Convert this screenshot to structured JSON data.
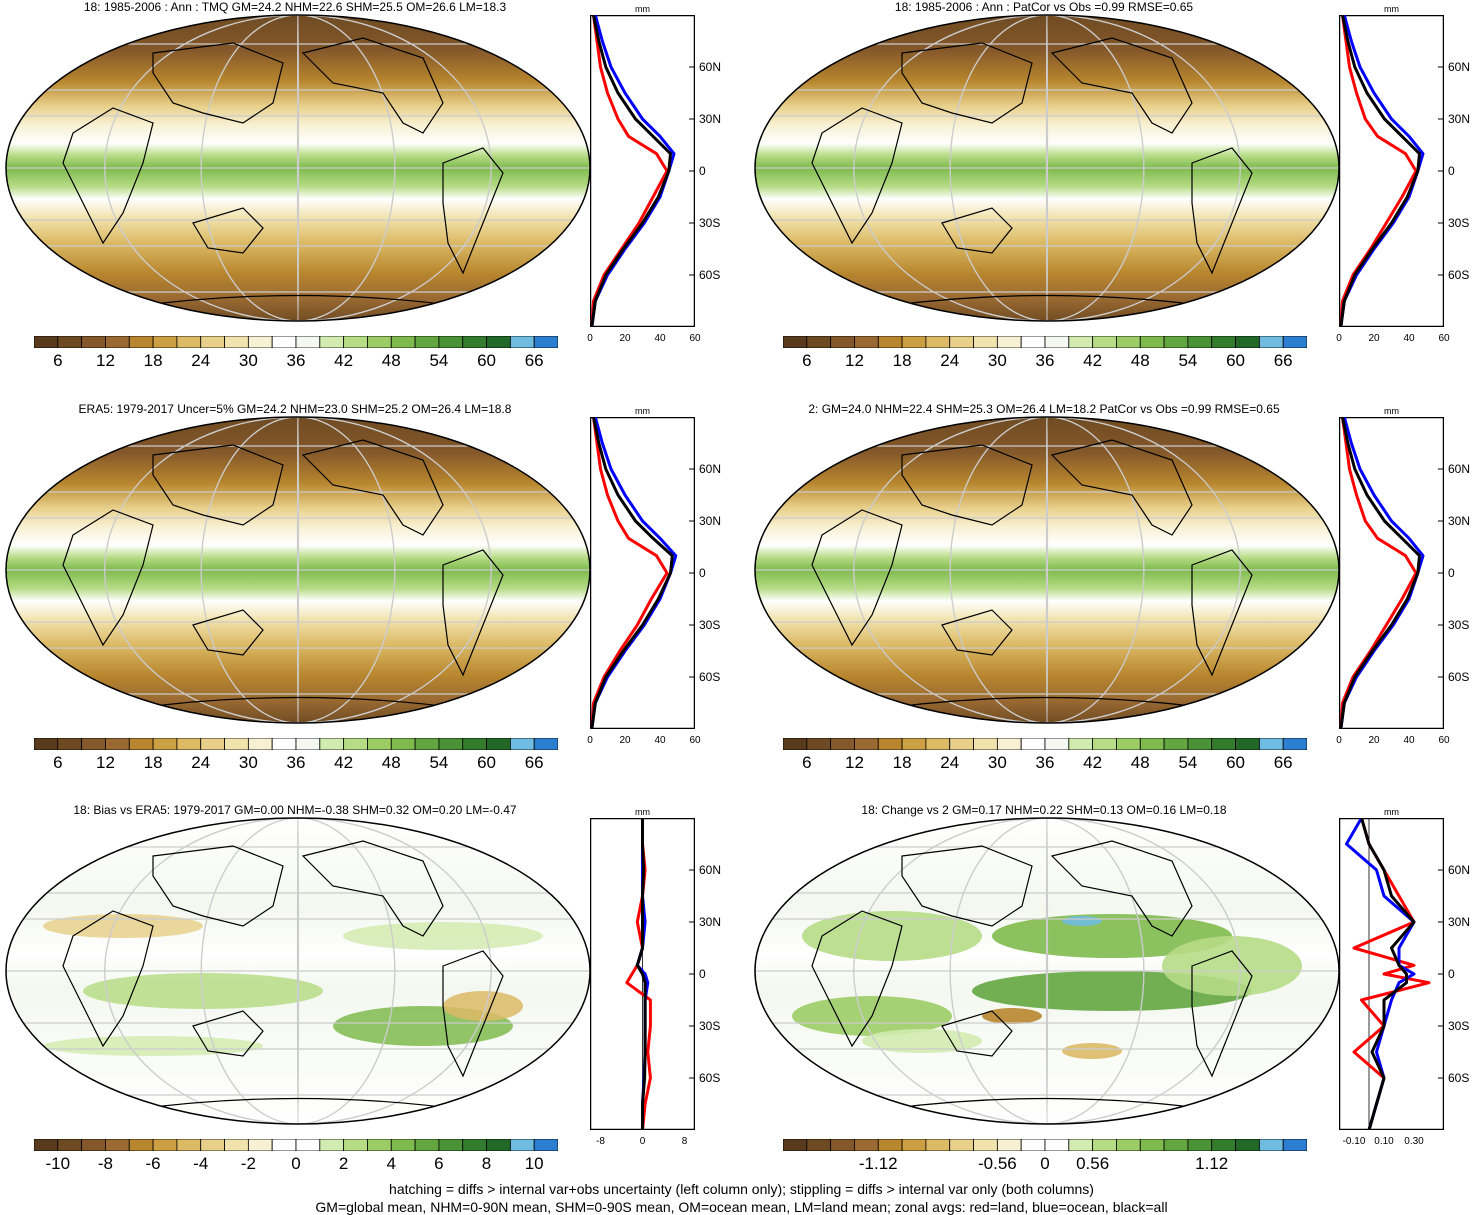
{
  "panels": [
    {
      "id": "p1",
      "title": "18: 1985-2006 : Ann : TMQ GM=24.2 NHM=22.6 SHM=25.5 OM=26.6 LM=18.3",
      "kind": "abs",
      "hatch": true,
      "stipple": true
    },
    {
      "id": "p2",
      "title": "18: 1985-2006 : Ann : PatCor vs Obs =0.99 RMSE=0.65",
      "kind": "abs",
      "hatch": false,
      "stipple": false
    },
    {
      "id": "p3",
      "title": "ERA5: 1979-2017 Uncer=5% GM=24.2 NHM=23.0 SHM=25.2 OM=26.4 LM=18.8",
      "kind": "abs",
      "hatch": true,
      "stipple": true
    },
    {
      "id": "p4",
      "title": "2: GM=24.0 NHM=22.4 SHM=25.3 OM=26.4 LM=18.2 PatCor vs Obs =0.99 RMSE=0.65",
      "kind": "abs",
      "hatch": false,
      "stipple": true
    },
    {
      "id": "p5",
      "title": "18: Bias vs ERA5: 1979-2017 GM=0.00 NHM=-0.38 SHM=0.32 OM=0.20 LM=-0.47",
      "kind": "bias",
      "hatch": true,
      "stipple": true
    },
    {
      "id": "p6",
      "title": "18: Change vs 2 GM=0.17 NHM=0.22 SHM=0.13 OM=0.16 LM=0.18",
      "kind": "change",
      "hatch": false,
      "stipple": false
    }
  ],
  "colorbars": {
    "abs": {
      "labels": [
        "6",
        "12",
        "18",
        "24",
        "30",
        "36",
        "42",
        "48",
        "54",
        "60",
        "66"
      ],
      "colors": [
        "#5a3a1c",
        "#6e4a22",
        "#84582a",
        "#9a6a32",
        "#b8862e",
        "#cc9f45",
        "#dcba66",
        "#e8d08b",
        "#f1e3ae",
        "#f8f0d2",
        "#ffffff",
        "#f4f8f0",
        "#d2ebb0",
        "#b6dc86",
        "#9ccc66",
        "#7fba4e",
        "#63a640",
        "#4a9236",
        "#347c2d",
        "#226827",
        "#6fbce0",
        "#2c7fd0"
      ]
    },
    "bias": {
      "labels": [
        "-10",
        "-8",
        "-6",
        "-4",
        "-2",
        "0",
        "2",
        "4",
        "6",
        "8",
        "10"
      ],
      "colors": [
        "#5a3a1c",
        "#6e4a22",
        "#84582a",
        "#9a6a32",
        "#b8862e",
        "#cc9f45",
        "#dcba66",
        "#e8d08b",
        "#f1e3ae",
        "#f8f0d2",
        "#ffffff",
        "#ffffff",
        "#d2ebb0",
        "#b6dc86",
        "#9ccc66",
        "#7fba4e",
        "#63a640",
        "#4a9236",
        "#347c2d",
        "#226827",
        "#6fbce0",
        "#2c7fd0"
      ]
    },
    "change": {
      "labels": [
        "-1.12",
        "-0.56",
        "0",
        "0.56",
        "1.12"
      ],
      "colors": [
        "#5a3a1c",
        "#6e4a22",
        "#84582a",
        "#9a6a32",
        "#b8862e",
        "#cc9f45",
        "#dcba66",
        "#e8d08b",
        "#f1e3ae",
        "#f8f0d2",
        "#ffffff",
        "#ffffff",
        "#d2ebb0",
        "#b6dc86",
        "#9ccc66",
        "#7fba4e",
        "#63a640",
        "#4a9236",
        "#347c2d",
        "#226827",
        "#6fbce0",
        "#2c7fd0"
      ]
    }
  },
  "zonal": {
    "unit": "mm",
    "lat_ticks": [
      "60N",
      "30N",
      "0",
      "30S",
      "60S"
    ],
    "lat_values": [
      60,
      30,
      0,
      -30,
      -60
    ],
    "abs_xticks": [
      "0",
      "20",
      "40",
      "60"
    ],
    "abs_xvalues": [
      0,
      20,
      40,
      60
    ],
    "bias_xticks": [
      "-8",
      "0",
      "8"
    ],
    "bias_xvalues": [
      -8,
      0,
      8
    ],
    "change_xticks": [
      "-0.10",
      "0.10",
      "0.30"
    ],
    "change_xvalues": [
      -0.1,
      0.1,
      0.3
    ]
  },
  "chart_data": [
    {
      "type": "line",
      "panel": "p1",
      "ylabel": "",
      "xlabel": "mm",
      "xlim": [
        0,
        60
      ],
      "ylim": [
        -90,
        90
      ],
      "x_lat": [
        -90,
        -75,
        -60,
        -45,
        -30,
        -15,
        0,
        10,
        20,
        30,
        45,
        60,
        75,
        90
      ],
      "series": [
        {
          "name": "red=land",
          "color": "#ff0000",
          "values": [
            1,
            2,
            8,
            18,
            28,
            36,
            44,
            38,
            22,
            16,
            10,
            6,
            4,
            2
          ]
        },
        {
          "name": "blue=ocean",
          "color": "#0000ff",
          "values": [
            1,
            3,
            10,
            20,
            31,
            40,
            45,
            48,
            40,
            30,
            20,
            12,
            7,
            3
          ]
        },
        {
          "name": "black=all",
          "color": "#000000",
          "values": [
            1,
            3,
            9,
            19,
            30,
            39,
            45,
            46,
            36,
            26,
            16,
            9,
            5,
            2
          ]
        }
      ]
    },
    {
      "type": "line",
      "panel": "p2",
      "ylabel": "",
      "xlabel": "mm",
      "xlim": [
        0,
        60
      ],
      "ylim": [
        -90,
        90
      ],
      "x_lat": [
        -90,
        -75,
        -60,
        -45,
        -30,
        -15,
        0,
        10,
        20,
        30,
        45,
        60,
        75,
        90
      ],
      "series": [
        {
          "name": "red=land",
          "color": "#ff0000",
          "values": [
            1,
            2,
            8,
            18,
            27,
            36,
            44,
            38,
            22,
            15,
            10,
            6,
            4,
            2
          ]
        },
        {
          "name": "blue=ocean",
          "color": "#0000ff",
          "values": [
            1,
            3,
            10,
            20,
            31,
            40,
            45,
            48,
            40,
            30,
            20,
            12,
            7,
            3
          ]
        },
        {
          "name": "black=all",
          "color": "#000000",
          "values": [
            1,
            3,
            9,
            19,
            30,
            39,
            45,
            46,
            36,
            26,
            16,
            9,
            5,
            2
          ]
        }
      ]
    },
    {
      "type": "line",
      "panel": "p3",
      "ylabel": "",
      "xlabel": "mm",
      "xlim": [
        0,
        60
      ],
      "ylim": [
        -90,
        90
      ],
      "x_lat": [
        -90,
        -75,
        -60,
        -45,
        -30,
        -15,
        0,
        10,
        20,
        30,
        45,
        60,
        75,
        90
      ],
      "series": [
        {
          "name": "red=land",
          "color": "#ff0000",
          "values": [
            1,
            2,
            8,
            17,
            27,
            35,
            44,
            38,
            22,
            16,
            10,
            6,
            4,
            2
          ]
        },
        {
          "name": "blue=ocean",
          "color": "#0000ff",
          "values": [
            1,
            3,
            10,
            20,
            31,
            40,
            46,
            49,
            40,
            30,
            20,
            12,
            7,
            3
          ]
        },
        {
          "name": "black=all",
          "color": "#000000",
          "values": [
            1,
            3,
            9,
            19,
            30,
            39,
            46,
            47,
            36,
            26,
            16,
            9,
            5,
            2
          ]
        }
      ]
    },
    {
      "type": "line",
      "panel": "p4",
      "ylabel": "",
      "xlabel": "mm",
      "xlim": [
        0,
        60
      ],
      "ylim": [
        -90,
        90
      ],
      "x_lat": [
        -90,
        -75,
        -60,
        -45,
        -30,
        -15,
        0,
        10,
        20,
        30,
        45,
        60,
        75,
        90
      ],
      "series": [
        {
          "name": "red=land",
          "color": "#ff0000",
          "values": [
            1,
            2,
            8,
            18,
            27,
            36,
            44,
            38,
            22,
            15,
            10,
            6,
            4,
            2
          ]
        },
        {
          "name": "blue=ocean",
          "color": "#0000ff",
          "values": [
            1,
            3,
            10,
            20,
            31,
            40,
            45,
            48,
            40,
            30,
            20,
            12,
            7,
            3
          ]
        },
        {
          "name": "black=all",
          "color": "#000000",
          "values": [
            1,
            3,
            9,
            19,
            30,
            39,
            45,
            46,
            36,
            26,
            16,
            9,
            5,
            2
          ]
        }
      ]
    },
    {
      "type": "line",
      "panel": "p5",
      "ylabel": "",
      "xlabel": "mm",
      "xlim": [
        -10,
        10
      ],
      "ylim": [
        -90,
        90
      ],
      "x_lat": [
        -90,
        -75,
        -60,
        -45,
        -30,
        -15,
        -5,
        0,
        5,
        15,
        30,
        45,
        60,
        75,
        90
      ],
      "series": [
        {
          "name": "red=land",
          "color": "#ff0000",
          "values": [
            0,
            0.5,
            1.5,
            1,
            1.5,
            1.5,
            -3,
            -2,
            -1,
            0,
            -1,
            0,
            0.5,
            0,
            0
          ]
        },
        {
          "name": "blue=ocean",
          "color": "#0000ff",
          "values": [
            0,
            0,
            0.3,
            0.5,
            0.5,
            0.5,
            1,
            0.5,
            -1,
            0,
            0.5,
            0,
            0,
            0,
            0
          ]
        },
        {
          "name": "black=all",
          "color": "#000000",
          "values": [
            0,
            0,
            0.4,
            0.5,
            0.5,
            0.5,
            0.5,
            0,
            -1,
            0,
            0,
            0,
            0.2,
            0,
            0
          ]
        }
      ]
    },
    {
      "type": "line",
      "panel": "p6",
      "ylabel": "",
      "xlabel": "mm",
      "xlim": [
        -0.2,
        0.5
      ],
      "ylim": [
        -90,
        90
      ],
      "x_lat": [
        -90,
        -75,
        -60,
        -45,
        -30,
        -15,
        -5,
        0,
        5,
        15,
        30,
        45,
        60,
        75,
        90
      ],
      "series": [
        {
          "name": "red=land",
          "color": "#ff0000",
          "values": [
            0,
            0.05,
            0.1,
            -0.1,
            0.1,
            -0.05,
            0.4,
            0.1,
            0.3,
            -0.1,
            0.3,
            0.2,
            0.1,
            0,
            -0.05
          ]
        },
        {
          "name": "blue=ocean",
          "color": "#0000ff",
          "values": [
            0,
            0.05,
            0.1,
            0.05,
            0.1,
            0.15,
            0.2,
            0.3,
            0.2,
            0.2,
            0.3,
            0.1,
            0.05,
            -0.15,
            -0.05
          ]
        },
        {
          "name": "black=all",
          "color": "#000000",
          "values": [
            0,
            0.05,
            0.1,
            0.02,
            0.1,
            0.1,
            0.25,
            0.25,
            0.2,
            0.15,
            0.3,
            0.15,
            0.1,
            0.0,
            -0.05
          ]
        }
      ]
    }
  ],
  "footnote": {
    "line1": "hatching = diffs > internal var+obs uncertainty (left column only); stippling = diffs > internal var only (both columns)",
    "line2": "GM=global mean, NHM=0-90N mean, SHM=0-90S mean, OM=ocean mean, LM=land mean; zonal avgs: red=land, blue=ocean, black=all"
  }
}
